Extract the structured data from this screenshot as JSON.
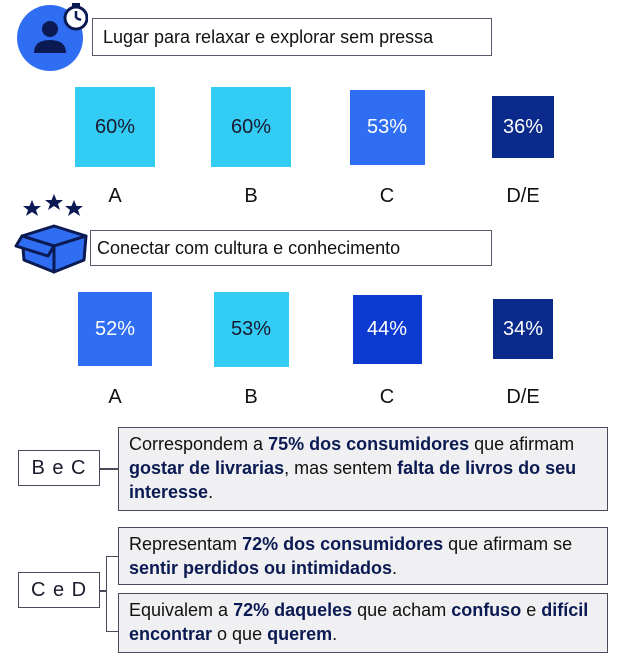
{
  "section1": {
    "label": "Lugar para relaxar e explorar sem pressa",
    "icon": "user-clock-icon"
  },
  "section2": {
    "label": "Conectar com cultura e conhecimento",
    "icon": "box-stars-icon"
  },
  "chart_data": [
    {
      "type": "bar",
      "title": "Lugar para relaxar e explorar sem pressa",
      "categories": [
        "A",
        "B",
        "C",
        "D/E"
      ],
      "values": [
        60,
        60,
        53,
        36
      ],
      "value_labels": [
        "60%",
        "60%",
        "53%",
        "36%"
      ],
      "colors": [
        "#33ccf5",
        "#33ccf5",
        "#2f6ef2",
        "#0a2b8c"
      ]
    },
    {
      "type": "bar",
      "title": "Conectar com cultura e conhecimento",
      "categories": [
        "A",
        "B",
        "C",
        "D/E"
      ],
      "values": [
        52,
        53,
        44,
        34
      ],
      "value_labels": [
        "52%",
        "53%",
        "44%",
        "34%"
      ],
      "colors": [
        "#2f6ef2",
        "#33ccf5",
        "#0d3ad0",
        "#0a2b8c"
      ]
    }
  ],
  "groups": {
    "bc": {
      "tag": "B e C",
      "note": {
        "t1": "Correspondem a ",
        "b1": "75% dos consumidores",
        "t2": " que afirmam ",
        "b2": "gostar de livrarias",
        "t3": ", mas sentem ",
        "b3": "falta de livros do seu interesse",
        "t4": "."
      }
    },
    "cd": {
      "tag": "C e D",
      "note1": {
        "t1": "Representam ",
        "b1": "72% dos consumidores",
        "t2": " que afirmam se ",
        "b2": "sentir perdidos ou intimidados",
        "t3": "."
      },
      "note2": {
        "t1": "Equivalem a ",
        "b1": "72% daqueles",
        "t2": " que acham ",
        "b2": "confuso",
        "t3": " e ",
        "b3": "difícil encontrar",
        "t4": " o que ",
        "b4": "querem",
        "t5": "."
      }
    }
  }
}
